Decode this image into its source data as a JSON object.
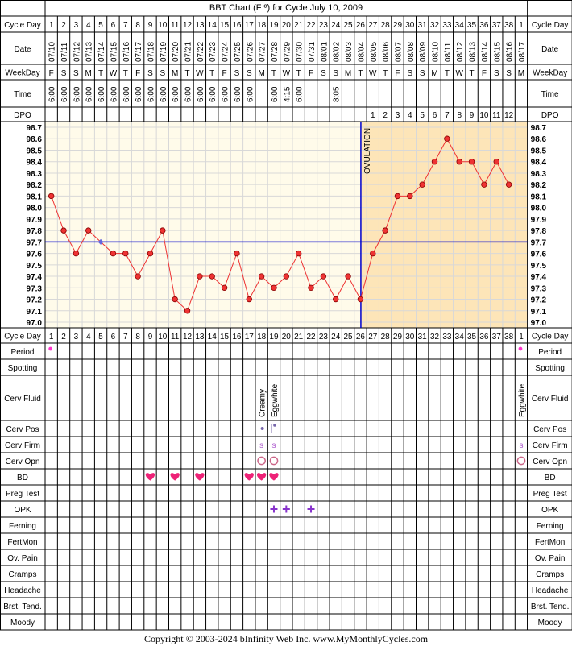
{
  "chart_data": {
    "type": "line",
    "title": "BBT Chart (F º) for Cycle July 10, 2009",
    "row_labels": {
      "cycle_day": "Cycle Day",
      "date": "Date",
      "weekday": "WeekDay",
      "time": "Time",
      "dpo": "DPO",
      "period": "Period",
      "spotting": "Spotting",
      "cerv_fluid": "Cerv Fluid",
      "cerv_pos": "Cerv Pos",
      "cerv_firm": "Cerv Firm",
      "cerv_opn": "Cerv Opn",
      "bd": "BD",
      "preg_test": "Preg Test",
      "opk": "OPK",
      "ferning": "Ferning",
      "fertmon": "FertMon",
      "ov_pain": "Ov. Pain",
      "cramps": "Cramps",
      "headache": "Headache",
      "brst_tend": "Brst. Tend.",
      "moody": "Moody"
    },
    "cycle_days": [
      "1",
      "2",
      "3",
      "4",
      "5",
      "6",
      "7",
      "8",
      "9",
      "10",
      "11",
      "12",
      "13",
      "14",
      "15",
      "16",
      "17",
      "18",
      "19",
      "20",
      "21",
      "22",
      "23",
      "24",
      "25",
      "26",
      "27",
      "28",
      "29",
      "30",
      "31",
      "32",
      "33",
      "34",
      "35",
      "36",
      "37",
      "38",
      "1"
    ],
    "dates": [
      "07/10",
      "07/11",
      "07/12",
      "07/13",
      "07/14",
      "07/15",
      "07/16",
      "07/17",
      "07/18",
      "07/19",
      "07/20",
      "07/21",
      "07/22",
      "07/23",
      "07/24",
      "07/25",
      "07/26",
      "07/27",
      "07/28",
      "07/29",
      "07/30",
      "07/31",
      "08/01",
      "08/02",
      "08/03",
      "08/04",
      "08/05",
      "08/06",
      "08/07",
      "08/08",
      "08/09",
      "08/10",
      "08/11",
      "08/12",
      "08/13",
      "08/14",
      "08/15",
      "08/16",
      "08/17"
    ],
    "weekdays": [
      "F",
      "S",
      "S",
      "M",
      "T",
      "W",
      "T",
      "F",
      "S",
      "S",
      "M",
      "T",
      "W",
      "T",
      "F",
      "S",
      "S",
      "M",
      "T",
      "W",
      "T",
      "F",
      "S",
      "S",
      "M",
      "T",
      "W",
      "T",
      "F",
      "S",
      "S",
      "M",
      "T",
      "W",
      "T",
      "F",
      "S",
      "S",
      "M"
    ],
    "times": [
      "6:00",
      "6:00",
      "6:00",
      "6:00",
      "6:00",
      "6:00",
      "6:00",
      "6:00",
      "6:00",
      "6:00",
      "6:00",
      "6:00",
      "6:00",
      "6:00",
      "6:00",
      "6:00",
      "6:00",
      "",
      "6:00",
      "4:15",
      "6:00",
      "",
      "",
      "8:05",
      "",
      "",
      "",
      "",
      "",
      "",
      "",
      "",
      "",
      "",
      "",
      "",
      "",
      "",
      ""
    ],
    "dpo": [
      "",
      "",
      "",
      "",
      "",
      "",
      "",
      "",
      "",
      "",
      "",
      "",
      "",
      "",
      "",
      "",
      "",
      "",
      "",
      "",
      "",
      "",
      "",
      "",
      "",
      "",
      "1",
      "2",
      "3",
      "4",
      "5",
      "6",
      "7",
      "8",
      "9",
      "10",
      "11",
      "12",
      ""
    ],
    "temperatures": [
      98.1,
      97.8,
      97.6,
      97.8,
      97.7,
      97.6,
      97.6,
      97.4,
      97.6,
      97.8,
      97.2,
      97.1,
      97.4,
      97.4,
      97.3,
      97.6,
      97.2,
      97.4,
      97.3,
      97.4,
      97.6,
      97.3,
      97.4,
      97.2,
      97.4,
      97.2,
      97.6,
      97.8,
      98.1,
      98.1,
      98.2,
      98.4,
      98.6,
      98.4,
      98.4,
      98.2,
      98.4,
      98.2,
      null
    ],
    "y_ticks": [
      "98.7",
      "98.6",
      "98.5",
      "98.4",
      "98.3",
      "98.2",
      "98.1",
      "98.0",
      "97.9",
      "97.8",
      "97.7",
      "97.6",
      "97.5",
      "97.4",
      "97.3",
      "97.2",
      "97.1",
      "97.0"
    ],
    "ylim": [
      97.0,
      98.7
    ],
    "coverline": 97.7,
    "ovulation_after_day_index": 25,
    "ovulation_label": "OVULATION",
    "period_days": [
      0,
      38
    ],
    "cerv_fluid": [
      {
        "day": 17,
        "text": "Creamy"
      },
      {
        "day": 18,
        "text": "Eggwhite"
      },
      {
        "day": 38,
        "text": "Eggwhite"
      }
    ],
    "cerv_pos_days": [
      17,
      18
    ],
    "cerv_firm": [
      {
        "day": 17,
        "text": "S"
      },
      {
        "day": 18,
        "text": "S"
      },
      {
        "day": 38,
        "text": "S"
      }
    ],
    "cerv_opn_days": [
      17,
      18,
      38
    ],
    "bd_days": [
      8,
      10,
      12,
      16,
      17,
      18
    ],
    "opk_days": [
      18,
      19,
      21
    ],
    "colors": {
      "pre_ovulation": "#fffbea",
      "post_ovulation": "#fde5b8",
      "line": "#ee3333",
      "coverline": "#0000cc",
      "grid": "#d8d8d8",
      "period": "#ff33cc",
      "bd": "#ee2277",
      "opk": "#8833cc",
      "cerv": "#aa55cc"
    }
  },
  "footer": "Copyright © 2003-2024 bInfinity Web Inc.     www.MyMonthlyCycles.com"
}
